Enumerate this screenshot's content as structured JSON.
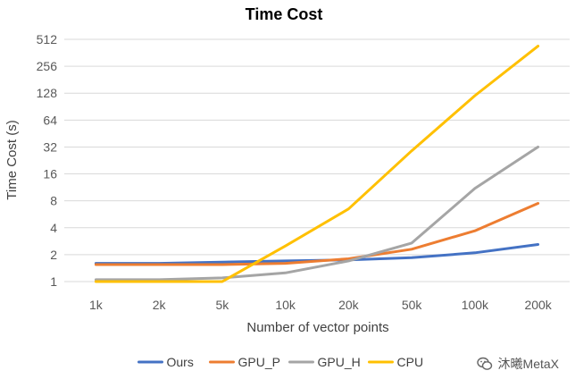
{
  "chart_data": {
    "type": "line",
    "title": "Time Cost",
    "xlabel": "Number of vector points",
    "ylabel": "Time Cost (s)",
    "y_scale": "log2",
    "ylim": [
      1,
      512
    ],
    "yticks": [
      1,
      2,
      4,
      8,
      16,
      32,
      64,
      128,
      256,
      512
    ],
    "ytick_labels": [
      "1",
      "2",
      "4",
      "8",
      "16",
      "32",
      "64",
      "128",
      "256",
      "512"
    ],
    "categories": [
      "1k",
      "2k",
      "5k",
      "10k",
      "20k",
      "50k",
      "100k",
      "200k"
    ],
    "grid": "horizontal",
    "legend_position": "bottom",
    "series": [
      {
        "name": "Ours",
        "color": "#4472c4",
        "values": [
          1.6,
          1.6,
          1.65,
          1.7,
          1.75,
          1.85,
          2.1,
          2.6
        ]
      },
      {
        "name": "GPU_P",
        "color": "#ed7d31",
        "values": [
          1.55,
          1.55,
          1.55,
          1.6,
          1.8,
          2.3,
          3.7,
          7.5
        ]
      },
      {
        "name": "GPU_H",
        "color": "#a5a5a5",
        "values": [
          1.05,
          1.05,
          1.1,
          1.25,
          1.7,
          2.7,
          11,
          32
        ]
      },
      {
        "name": "CPU",
        "color": "#ffc000",
        "values": [
          1.0,
          1.0,
          1.0,
          2.5,
          6.5,
          29,
          120,
          430
        ]
      }
    ]
  },
  "watermark": {
    "text": "沐曦MetaX",
    "icon": "wechat-icon"
  }
}
